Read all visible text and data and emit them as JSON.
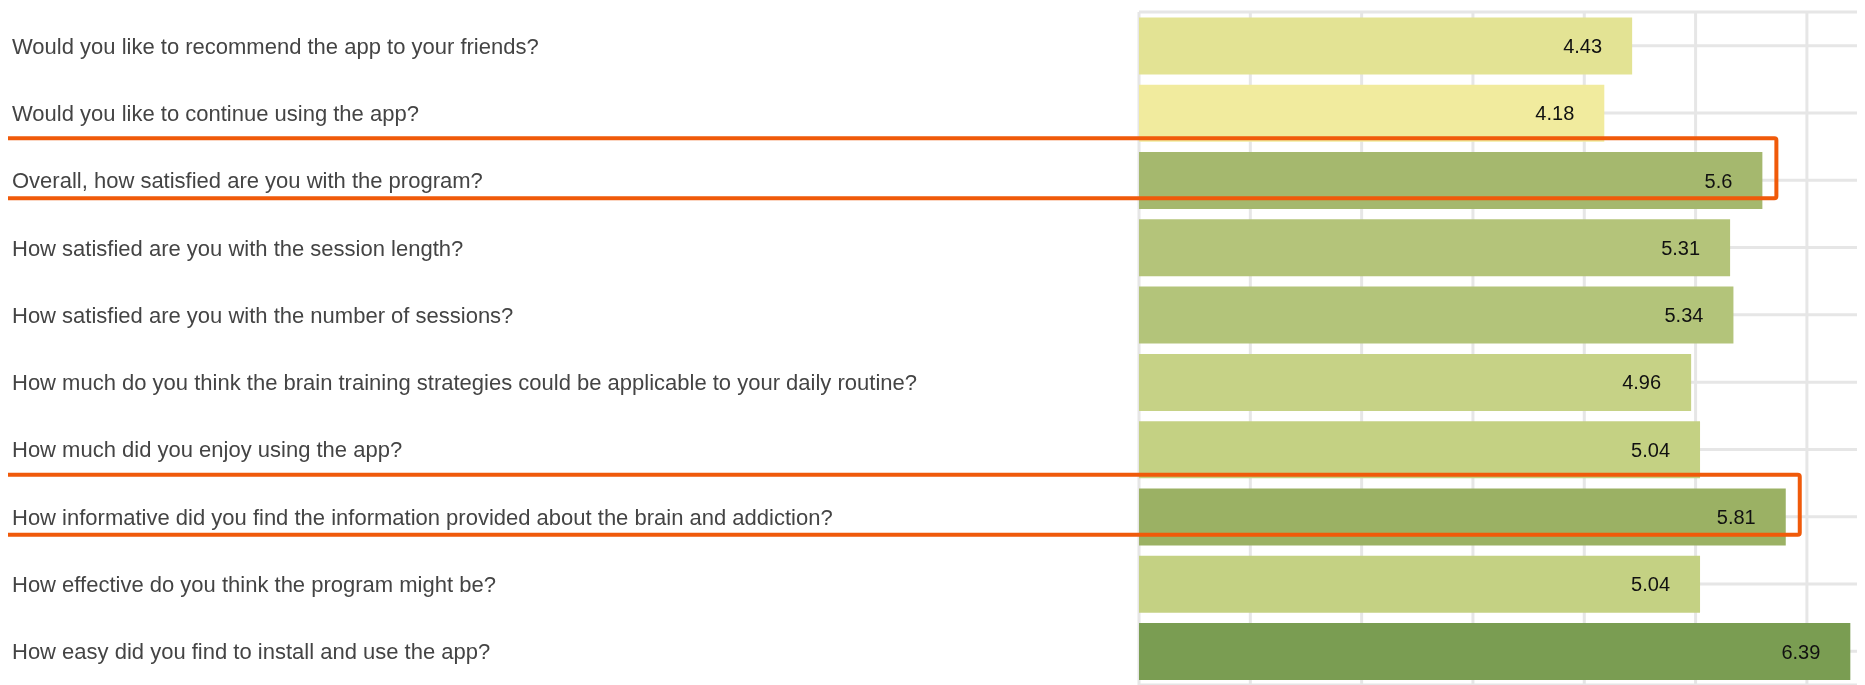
{
  "chart_data": {
    "type": "bar",
    "orientation": "horizontal",
    "categories": [
      "Would you like to recommend the app to your friends?",
      "Would you like to continue using the app?",
      "Overall, how satisfied are you with the program?",
      "How satisfied are you with the session length?",
      "How satisfied are you with the number of sessions?",
      "How much do you think the brain training strategies could be applicable to your daily routine?",
      "How much did you enjoy using the app?",
      "How informative did you find the information provided about the brain and addiction?",
      "How effective do you think the program might be?",
      "How easy did you find to install and use the app?"
    ],
    "values": [
      4.43,
      4.18,
      5.6,
      5.31,
      5.34,
      4.96,
      5.04,
      5.81,
      5.04,
      6.39
    ],
    "colors": [
      "#e3e394",
      "#f1eb9e",
      "#a5b86e",
      "#b4c47a",
      "#b3c47a",
      "#c6d286",
      "#c4d183",
      "#9bb164",
      "#c4d183",
      "#7a9d52"
    ],
    "xlim": [
      0,
      6.45
    ],
    "grid": true,
    "data_labels": true,
    "tick_labels": "y"
  }
}
